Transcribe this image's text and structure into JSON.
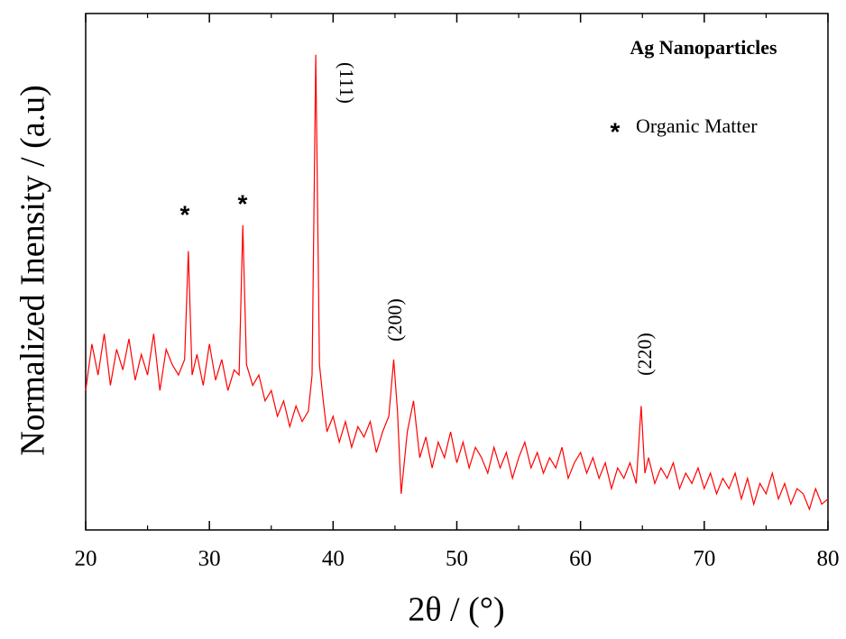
{
  "chart_data": {
    "type": "line",
    "xlabel": "2θ / (°)",
    "ylabel": "Normalized Inensity / (a.u)",
    "color": "#ff0000",
    "x": [
      20,
      20.5,
      21,
      21.5,
      22,
      22.5,
      23,
      23.5,
      24,
      24.5,
      25,
      25.5,
      26,
      26.5,
      27,
      27.5,
      28,
      28.3,
      28.6,
      29,
      29.5,
      30,
      30.5,
      31,
      31.5,
      32,
      32.4,
      32.7,
      33,
      33.5,
      34,
      34.5,
      35,
      35.5,
      36,
      36.5,
      37,
      37.5,
      38,
      38.3,
      38.6,
      38.9,
      39.2,
      39.5,
      40,
      40.5,
      41,
      41.5,
      42,
      42.5,
      43,
      43.5,
      44,
      44.5,
      44.9,
      45.2,
      45.5,
      46,
      46.5,
      47,
      47.5,
      48,
      48.5,
      49,
      49.5,
      50,
      50.5,
      51,
      51.5,
      52,
      52.5,
      53,
      53.5,
      54,
      54.5,
      55,
      55.5,
      56,
      56.5,
      57,
      57.5,
      58,
      58.5,
      59,
      59.5,
      60,
      60.5,
      61,
      61.5,
      62,
      62.5,
      63,
      63.5,
      64,
      64.5,
      64.9,
      65.2,
      65.5,
      66,
      66.5,
      67,
      67.5,
      68,
      68.5,
      69,
      69.5,
      70,
      70.5,
      71,
      71.5,
      72,
      72.5,
      73,
      73.5,
      74,
      74.5,
      75,
      75.5,
      76,
      76.5,
      77,
      77.5,
      78,
      78.5,
      79,
      79.5,
      80
    ],
    "values": [
      27,
      36,
      30,
      38,
      28,
      35,
      31,
      37,
      29,
      34,
      30,
      38,
      27,
      35,
      32,
      30,
      33,
      54,
      30,
      34,
      28,
      36,
      29,
      33,
      27,
      31,
      30,
      59,
      32,
      28,
      30,
      25,
      27,
      22,
      25,
      20,
      24,
      21,
      23,
      30,
      92,
      32,
      25,
      19,
      22,
      17,
      21,
      16,
      20,
      18,
      21,
      15,
      19,
      22,
      33,
      23,
      7,
      19,
      25,
      14,
      18,
      12,
      17,
      14,
      19,
      13,
      17,
      12,
      16,
      14,
      11,
      16,
      12,
      15,
      10,
      14,
      17,
      12,
      15,
      11,
      14,
      12,
      16,
      10,
      13,
      15,
      11,
      14,
      10,
      13,
      8,
      12,
      10,
      13,
      9,
      24,
      11,
      14,
      9,
      12,
      10,
      13,
      8,
      11,
      9,
      12,
      8,
      11,
      7,
      10,
      8,
      11,
      6,
      10,
      5,
      9,
      7,
      11,
      6,
      9,
      5,
      8,
      7,
      4,
      8,
      5,
      6
    ],
    "xlim": [
      20,
      80
    ],
    "ylim": [
      0,
      100
    ],
    "xticks": [
      20,
      30,
      40,
      50,
      60,
      70,
      80
    ],
    "xminorticks": [
      25,
      35,
      45,
      55,
      65,
      75
    ],
    "annotations": [
      "*",
      "*",
      "(111)",
      "(200)",
      "(220)"
    ],
    "legend": {
      "title": "Ag Nanoparticles",
      "marker": "*",
      "label": "Organic Matter"
    }
  }
}
